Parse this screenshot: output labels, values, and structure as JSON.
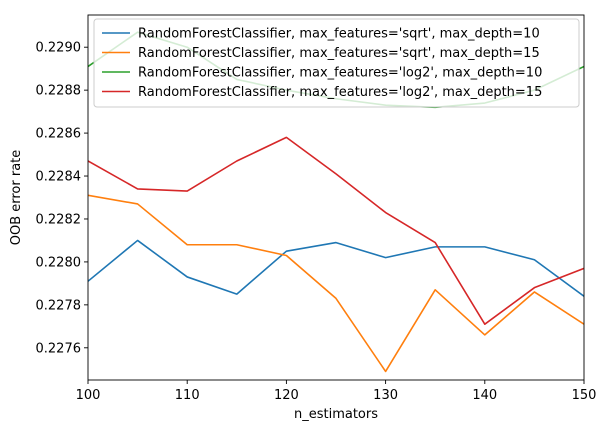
{
  "chart_data": {
    "type": "line",
    "xlabel": "n_estimators",
    "ylabel": "OOB error rate",
    "xlim": [
      100,
      150
    ],
    "ylim": [
      0.22745,
      0.22915
    ],
    "x_ticks": [
      "100",
      "110",
      "120",
      "130",
      "140",
      "150"
    ],
    "y_ticks": [
      "0.2276",
      "0.2278",
      "0.2280",
      "0.2282",
      "0.2284",
      "0.2286",
      "0.2288",
      "0.2290"
    ],
    "legend_position": "top-right",
    "grid": false,
    "series": [
      {
        "name": "RandomForestClassifier, max_features='sqrt', max_depth=10",
        "color": "#1f77b4",
        "x": [
          100,
          105,
          110,
          115,
          120,
          125,
          130,
          135,
          140,
          145,
          150
        ],
        "values": [
          0.22791,
          0.2281,
          0.22793,
          0.22785,
          0.22805,
          0.22809,
          0.22802,
          0.22807,
          0.22807,
          0.22801,
          0.22784
        ]
      },
      {
        "name": "RandomForestClassifier, max_features='sqrt', max_depth=15",
        "color": "#ff7f0e",
        "x": [
          100,
          105,
          110,
          115,
          120,
          125,
          130,
          135,
          140,
          145,
          150
        ],
        "values": [
          0.22831,
          0.22827,
          0.22808,
          0.22808,
          0.22803,
          0.22783,
          0.22749,
          0.22787,
          0.22766,
          0.22786,
          0.22771
        ]
      },
      {
        "name": "RandomForestClassifier, max_features='log2', max_depth=10",
        "color": "#2ca02c",
        "x": [
          100,
          105,
          110,
          115,
          120,
          125,
          130,
          135,
          140,
          145,
          150
        ],
        "values": [
          0.22891,
          0.22907,
          0.229,
          0.22885,
          0.2288,
          0.22876,
          0.22873,
          0.22872,
          0.22874,
          0.2288,
          0.22891
        ]
      },
      {
        "name": "RandomForestClassifier, max_features='log2', max_depth=15",
        "color": "#d62728",
        "x": [
          100,
          105,
          110,
          115,
          120,
          125,
          130,
          135,
          140,
          145,
          150
        ],
        "values": [
          0.22847,
          0.22834,
          0.22833,
          0.22847,
          0.22858,
          0.22841,
          0.22823,
          0.22809,
          0.22771,
          0.22788,
          0.22797
        ]
      }
    ]
  }
}
